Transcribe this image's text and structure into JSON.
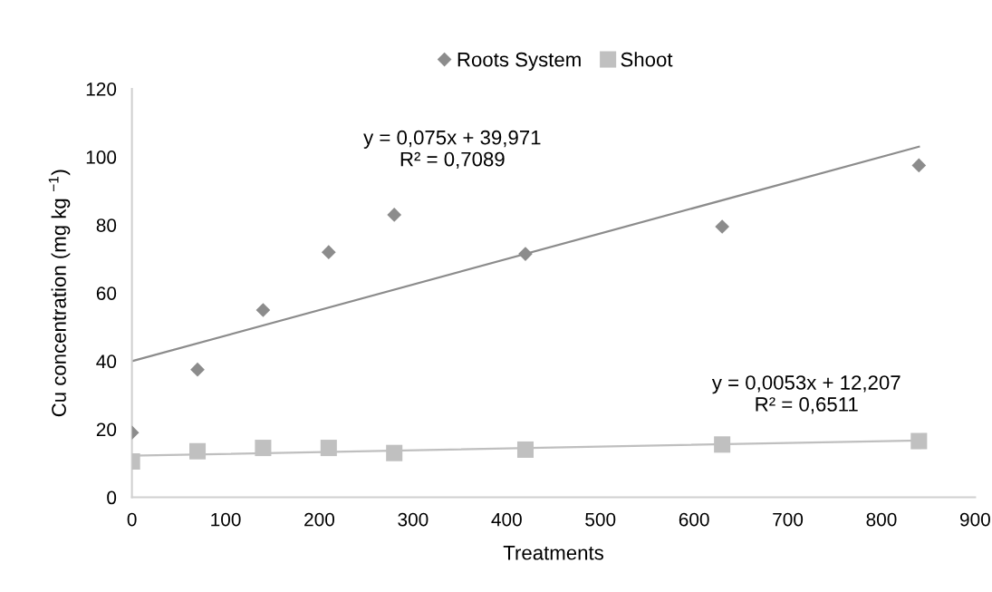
{
  "chart_data": {
    "type": "scatter",
    "xlabel": "Treatments",
    "ylabel": "Cu concentration (mg kg $^{−1}$)",
    "xlim": [
      0,
      900
    ],
    "xticks": [
      0,
      100,
      200,
      300,
      400,
      500,
      600,
      700,
      800,
      900
    ],
    "ylim": [
      0,
      120
    ],
    "yticks": [
      0,
      20,
      40,
      60,
      80,
      100,
      120
    ],
    "grid": false,
    "legend": "top",
    "series": [
      {
        "name": "Roots System",
        "marker": "diamond",
        "color": "#8c8c8c",
        "x": [
          0,
          70,
          140,
          210,
          280,
          420,
          630,
          840
        ],
        "values": [
          19,
          37.5,
          55,
          72,
          83,
          71.5,
          79.5,
          97.5
        ]
      },
      {
        "name": "Shoot",
        "marker": "square",
        "color": "#c0c0c0",
        "x": [
          0,
          70,
          140,
          210,
          280,
          420,
          630,
          840
        ],
        "values": [
          10.5,
          13.5,
          14.5,
          14.5,
          13,
          14,
          15.5,
          16.5
        ]
      },
      {
        "type": "line",
        "color": "#8c8c8c",
        "x": [
          0,
          840
        ],
        "values": [
          40,
          103
        ]
      },
      {
        "type": "line",
        "color": "#bfbfbf",
        "x": [
          0,
          840
        ],
        "values": [
          12.2,
          16.7
        ]
      }
    ],
    "annotations": [
      "y = 0,075x + 39,971\nR² = 0,7089",
      "y = 0,0053x + 12,207\nR² = 0,6511"
    ]
  }
}
